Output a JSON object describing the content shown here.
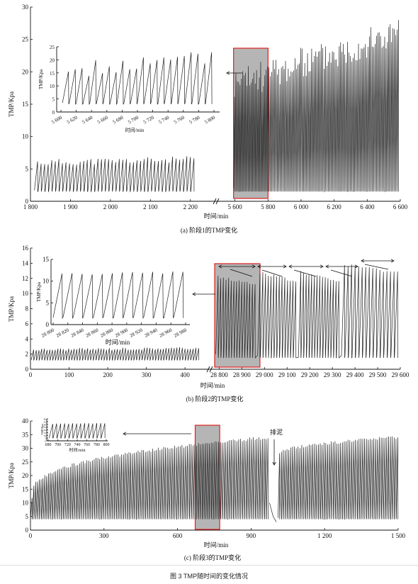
{
  "figure_caption": "图 3  TMP随时间的变化情况",
  "chart_data": [
    {
      "type": "line",
      "panel_caption": "(a) 阶段1的TMP变化",
      "xlabel": "时间/min",
      "ylabel": "TMP/Kpa",
      "ylim": [
        0,
        30
      ],
      "yticks": [
        0,
        5,
        10,
        15,
        20,
        25,
        30
      ],
      "axis_break": true,
      "segments": [
        {
          "xlim": [
            1800,
            2220
          ],
          "xticks": [
            1800,
            1900,
            2000,
            2100,
            2200
          ],
          "xtick_labels": [
            "1 800",
            "1 900",
            "2 000",
            "2 100",
            "2 200"
          ],
          "cycles": 45,
          "ymin": 1.5,
          "ymax": 6.5
        },
        {
          "xlim": [
            5580,
            6600
          ],
          "xticks": [
            5600,
            5800,
            6000,
            6200,
            6400,
            6600
          ],
          "xtick_labels": [
            "5 600",
            "5 800",
            "6 000",
            "6 200",
            "6 400",
            "6 600"
          ],
          "cycles": 120,
          "ymin": 1.5,
          "ymax_start": 18,
          "ymax_end": 26
        }
      ],
      "highlight": {
        "x_range": [
          5600,
          5800
        ]
      },
      "inset": {
        "xlim": [
          5600,
          5800
        ],
        "ylim": [
          0,
          25
        ],
        "xticks": [
          5600,
          5620,
          5640,
          5660,
          5680,
          5700,
          5720,
          5740,
          5760,
          5780,
          5800
        ],
        "xtick_labels": [
          "5 600",
          "5 620",
          "5 640",
          "5 660",
          "5 680",
          "5 700",
          "5 720",
          "5 740",
          "5 760",
          "5 780",
          "5 800"
        ],
        "yticks": [
          0,
          5,
          10,
          15,
          20,
          25
        ],
        "xlabel": "时间/min",
        "ylabel": "TMP/Kpa",
        "cycles": 22,
        "ymin": 3,
        "ymax": 21
      }
    },
    {
      "type": "line",
      "panel_caption": "(b) 阶段2的TMP变化",
      "xlabel": "时间/min",
      "ylabel": "TMP/Kpa",
      "ylim": [
        0,
        16
      ],
      "yticks": [
        0,
        2,
        4,
        6,
        8,
        10,
        12,
        14,
        16
      ],
      "axis_break": true,
      "segments": [
        {
          "xlim": [
            0,
            440
          ],
          "xticks": [
            0,
            100,
            200,
            300,
            400
          ],
          "xtick_labels": [
            "0",
            "100",
            "200",
            "300",
            "400"
          ],
          "cycles": 62,
          "ymin": 1.2,
          "ymax": 2.8
        },
        {
          "xlim": [
            28780,
            29600
          ],
          "xticks": [
            28800,
            28900,
            29000,
            29100,
            29200,
            29300,
            29400,
            29500,
            29600
          ],
          "xtick_labels": [
            "28 800",
            "28 900",
            "29 000",
            "29 100",
            "29 200",
            "29 300",
            "29 400",
            "29 500",
            "29 600"
          ],
          "cycles": 60,
          "ymin": 1.5,
          "ymax_start": 12,
          "ymax_end": 14
        }
      ],
      "highlight": {
        "x_range": [
          28780,
          28980
        ]
      },
      "inset": {
        "xlim": [
          28800,
          28980
        ],
        "ylim": [
          0,
          15
        ],
        "xticks": [
          28800,
          28820,
          28840,
          28860,
          28880,
          28900,
          28920,
          28940,
          28960,
          28980
        ],
        "xtick_labels": [
          "28 800",
          "28 820",
          "28 840",
          "28 860",
          "28 880",
          "28 900",
          "28 920",
          "28 940",
          "28 960",
          "28 980"
        ],
        "yticks": [
          0,
          5,
          10,
          15
        ],
        "xlabel": "时间/min",
        "ylabel": "TMP/Kpa",
        "cycles": 13,
        "ymin": 1.5,
        "ymax": 12
      }
    },
    {
      "type": "line",
      "panel_caption": "(c) 阶段3的TMP变化",
      "xlabel": "时间/min",
      "ylabel": "TMP/Kpa",
      "ylim": [
        0,
        40
      ],
      "yticks": [
        0,
        5,
        10,
        15,
        20,
        25,
        30,
        35,
        40
      ],
      "xlim": [
        0,
        1500
      ],
      "xticks": [
        0,
        300,
        600,
        900,
        1200,
        1500
      ],
      "xtick_labels": [
        "0",
        "300",
        "600",
        "900",
        "1 200",
        "1 500"
      ],
      "highlight": {
        "x_range": [
          672,
          772
        ]
      },
      "annotation": {
        "text": "排泥",
        "x": 1000
      },
      "segments": [
        {
          "x_range": [
            0,
            970
          ],
          "cycles": 130,
          "ymin": 4,
          "ymax_start": 12,
          "ymax_end": 34
        },
        {
          "x_range": [
            1010,
            1500
          ],
          "cycles": 65,
          "ymin": 4,
          "ymax_start": 28,
          "ymax_end": 34
        }
      ],
      "inset": {
        "xlim": [
          680,
          800
        ],
        "xticks": [
          680,
          700,
          720,
          740,
          760,
          780,
          800
        ],
        "xtick_labels": [
          "680",
          "700",
          "720",
          "740",
          "760",
          "780",
          "800"
        ],
        "yticks": [
          0,
          5,
          10,
          15,
          20,
          25,
          30,
          35,
          40
        ],
        "ylim": [
          0,
          40
        ],
        "xlabel": "时间/min",
        "ylabel": "TMP/Kpa",
        "cycles": 14,
        "ymin": 5,
        "ymax": 32
      }
    }
  ]
}
